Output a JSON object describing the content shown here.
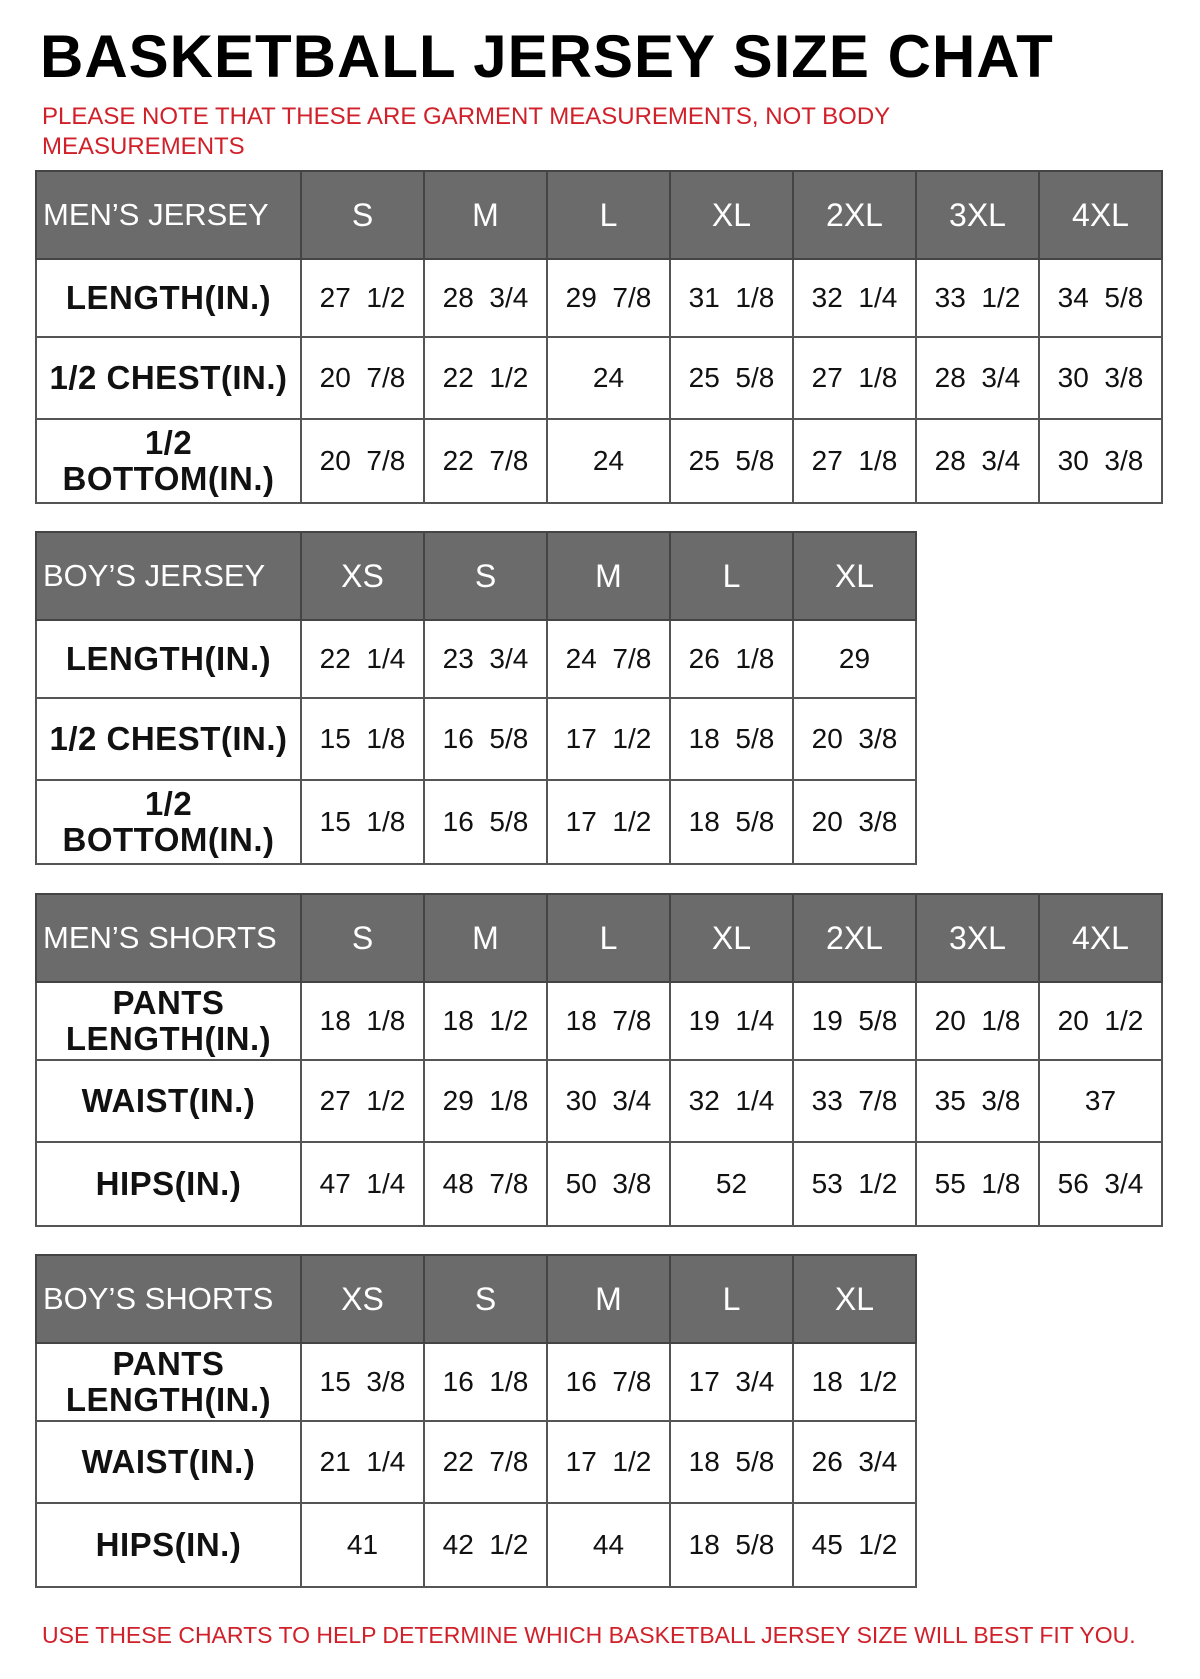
{
  "title": "BASKETBALL JERSEY SIZE CHAT",
  "note": "PLEASE NOTE THAT THESE ARE GARMENT MEASUREMENTS, NOT BODY MEASUREMENTS",
  "footer": "USE THESE CHARTS TO HELP DETERMINE WHICH BASKETBALL JERSEY SIZE WILL BEST FIT YOU.",
  "colors": {
    "header_bg": "#6b6b6b",
    "note_red": "#d0202a"
  },
  "tables": [
    {
      "label": "MEN’S JERSEY",
      "sizes": [
        "S",
        "M",
        "L",
        "XL",
        "2XL",
        "3XL",
        "4XL"
      ],
      "rows": [
        {
          "label": "LENGTH(IN.)",
          "values": [
            "27  1/2",
            "28  3/4",
            "29  7/8",
            "31  1/8",
            "32  1/4",
            "33  1/2",
            "34  5/8"
          ]
        },
        {
          "label": "1/2  CHEST(IN.)",
          "values": [
            "20  7/8",
            "22  1/2",
            "24",
            "25  5/8",
            "27  1/8",
            "28  3/4",
            "30  3/8"
          ]
        },
        {
          "label": "1/2  BOTTOM(IN.)",
          "values": [
            "20  7/8",
            "22  7/8",
            "24",
            "25  5/8",
            "27  1/8",
            "28  3/4",
            "30  3/8"
          ]
        }
      ]
    },
    {
      "label": "BOY’S JERSEY",
      "sizes": [
        "XS",
        "S",
        "M",
        "L",
        "XL"
      ],
      "rows": [
        {
          "label": "LENGTH(IN.)",
          "values": [
            "22  1/4",
            "23  3/4",
            "24  7/8",
            "26  1/8",
            "29"
          ]
        },
        {
          "label": "1/2  CHEST(IN.)",
          "values": [
            "15  1/8",
            "16  5/8",
            "17  1/2",
            "18  5/8",
            "20  3/8"
          ]
        },
        {
          "label": "1/2  BOTTOM(IN.)",
          "values": [
            "15  1/8",
            "16  5/8",
            "17  1/2",
            "18  5/8",
            "20  3/8"
          ]
        }
      ]
    },
    {
      "label": "MEN’S SHORTS",
      "sizes": [
        "S",
        "M",
        "L",
        "XL",
        "2XL",
        "3XL",
        "4XL"
      ],
      "rows": [
        {
          "label": "PANTS LENGTH(IN.)",
          "values": [
            "18  1/8",
            "18  1/2",
            "18  7/8",
            "19  1/4",
            "19  5/8",
            "20  1/8",
            "20  1/2"
          ]
        },
        {
          "label": "WAIST(IN.)",
          "values": [
            "27  1/2",
            "29  1/8",
            "30  3/4",
            "32  1/4",
            "33  7/8",
            "35  3/8",
            "37"
          ]
        },
        {
          "label": "HIPS(IN.)",
          "values": [
            "47  1/4",
            "48  7/8",
            "50  3/8",
            "52",
            "53  1/2",
            "55  1/8",
            "56  3/4"
          ]
        }
      ]
    },
    {
      "label": "BOY’S SHORTS",
      "sizes": [
        "XS",
        "S",
        "M",
        "L",
        "XL"
      ],
      "rows": [
        {
          "label": "PANTS LENGTH(IN.)",
          "values": [
            "15  3/8",
            "16  1/8",
            "16  7/8",
            "17  3/4",
            "18  1/2"
          ]
        },
        {
          "label": "WAIST(IN.)",
          "values": [
            "21  1/4",
            "22  7/8",
            "17  1/2",
            "18  5/8",
            "26  3/4"
          ]
        },
        {
          "label": "HIPS(IN.)",
          "values": [
            "41",
            "42  1/2",
            "44",
            "18  5/8",
            "45  1/2"
          ]
        }
      ]
    }
  ]
}
